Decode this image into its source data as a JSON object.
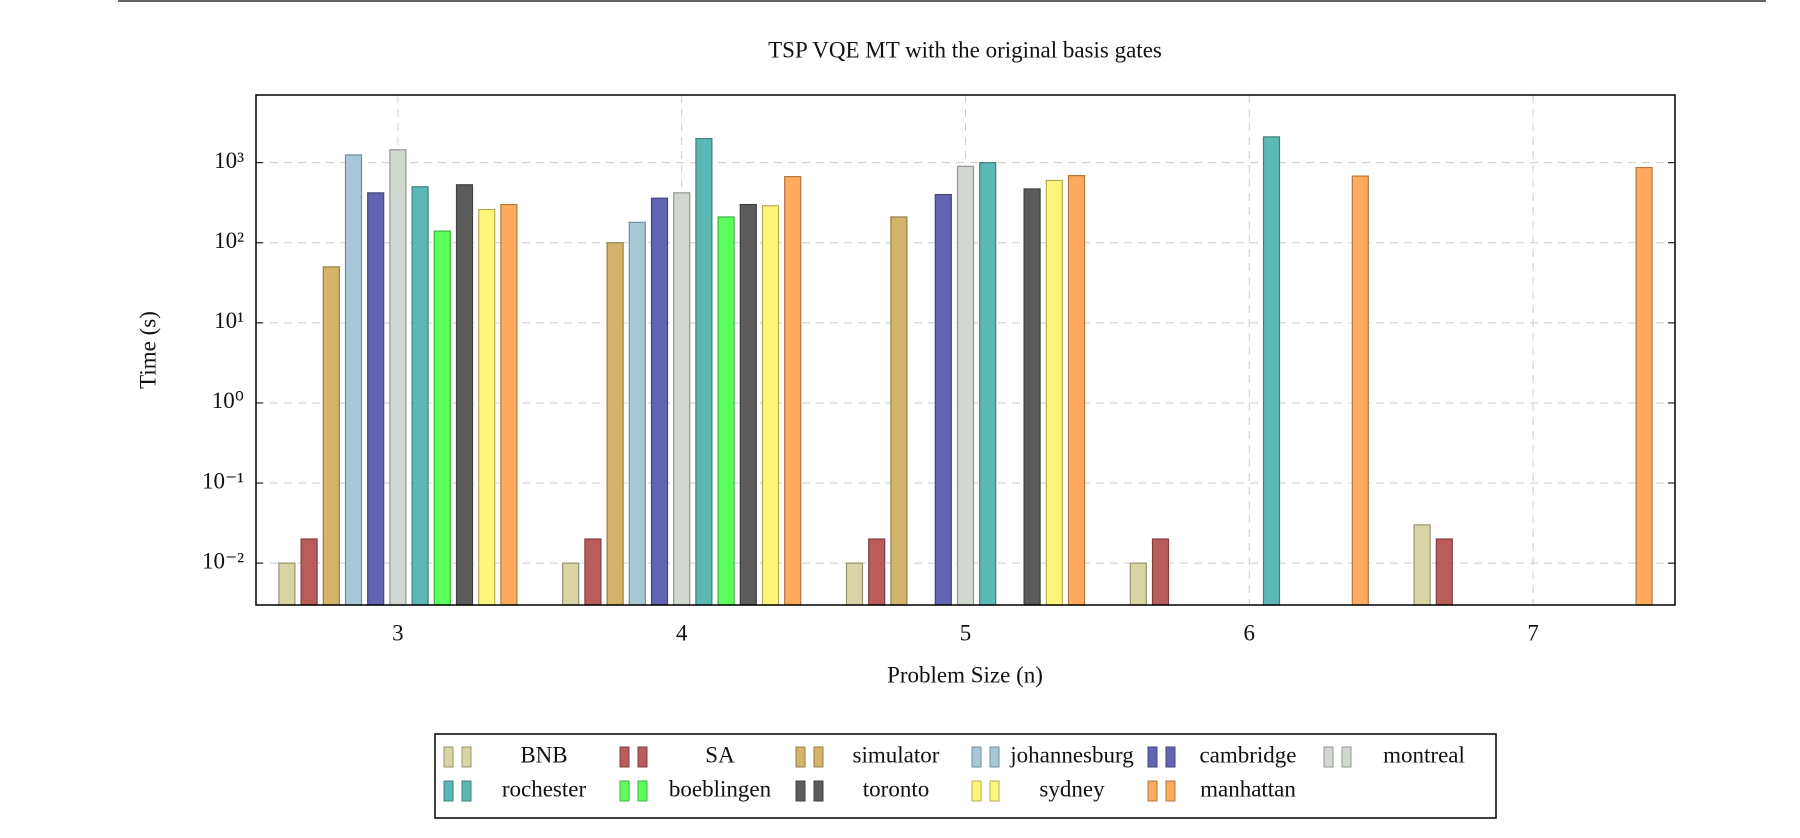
{
  "chart_data": {
    "type": "bar",
    "title": "TSP VQE MT with the original basis gates",
    "x_label": "Problem Size (n)",
    "y_label": "Time (s)",
    "categories": [
      "3",
      "4",
      "5",
      "6",
      "7"
    ],
    "log_scale": true,
    "grid": true,
    "ylim": [
      0.003,
      7000
    ],
    "yticks": [
      {
        "value": 0.01,
        "label": "10⁻²"
      },
      {
        "value": 0.1,
        "label": "10⁻¹"
      },
      {
        "value": 1,
        "label": "10⁰"
      },
      {
        "value": 10,
        "label": "10¹"
      },
      {
        "value": 100,
        "label": "10²"
      },
      {
        "value": 1000,
        "label": "10³"
      }
    ],
    "series": [
      {
        "name": "BNB",
        "color": "#d8d4a4",
        "values": [
          0.01,
          0.01,
          0.01,
          0.01,
          0.03
        ]
      },
      {
        "name": "SA",
        "color": "#b85c5c",
        "values": [
          0.02,
          0.02,
          0.02,
          0.02,
          0.02
        ]
      },
      {
        "name": "simulator",
        "color": "#d4b46a",
        "values": [
          50,
          100,
          210,
          null,
          null
        ]
      },
      {
        "name": "johannesburg",
        "color": "#a8c8d8",
        "values": [
          1250,
          180,
          null,
          null,
          null
        ]
      },
      {
        "name": "cambridge",
        "color": "#6464b4",
        "values": [
          420,
          360,
          400,
          null,
          null
        ]
      },
      {
        "name": "montreal",
        "color": "#d0d8d0",
        "values": [
          1450,
          420,
          900,
          null,
          null
        ]
      },
      {
        "name": "rochester",
        "color": "#5cb8b4",
        "values": [
          500,
          2000,
          1000,
          2100,
          null
        ]
      },
      {
        "name": "boeblingen",
        "color": "#5cff5c",
        "values": [
          140,
          210,
          null,
          null,
          null
        ]
      },
      {
        "name": "toronto",
        "color": "#5c5c5c",
        "values": [
          530,
          300,
          470,
          null,
          null
        ]
      },
      {
        "name": "sydney",
        "color": "#fff57a",
        "values": [
          260,
          290,
          600,
          null,
          null
        ]
      },
      {
        "name": "manhattan",
        "color": "#ffaa5c",
        "values": [
          300,
          670,
          690,
          680,
          870
        ]
      }
    ]
  }
}
